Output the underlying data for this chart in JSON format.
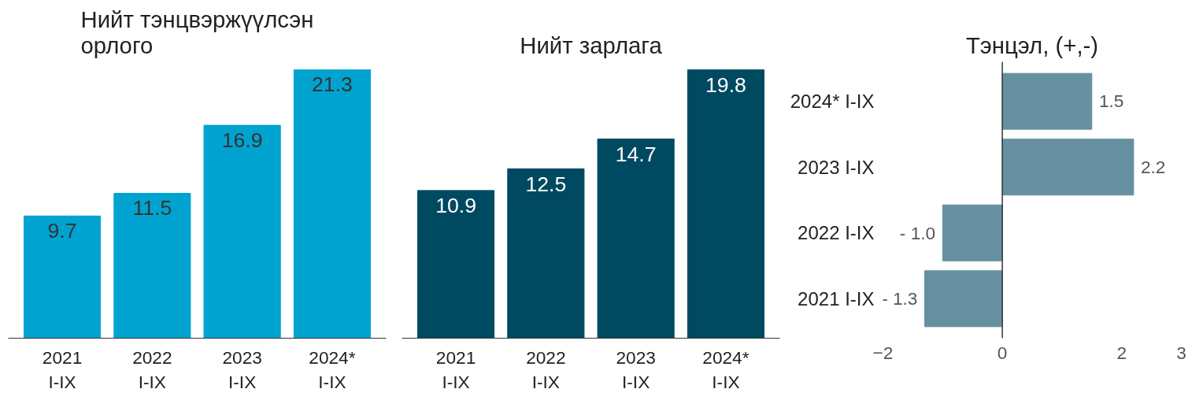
{
  "chart_data": [
    {
      "type": "bar",
      "title": "Нийт тэнцвэржүүлсэн\nорлого",
      "categories": [
        "2021\nI-IX",
        "2022\nI-IX",
        "2023\nI-IX",
        "2024*\nI-IX"
      ],
      "values": [
        9.7,
        11.5,
        16.9,
        21.3
      ],
      "color": "#00a3cf",
      "data_labels": true,
      "grid": false
    },
    {
      "type": "bar",
      "title": "Нийт зарлага",
      "categories": [
        "2021\nI-IX",
        "2022\nI-IX",
        "2023\nI-IX",
        "2024*\nI-IX"
      ],
      "values": [
        10.9,
        12.5,
        14.7,
        19.8
      ],
      "color": "#004a61",
      "data_labels": true,
      "grid": false
    },
    {
      "type": "bar",
      "orientation": "horizontal",
      "title": "Тэнцэл, (+,-)",
      "categories": [
        "2024* I-IX",
        "2023 I-IX",
        "2022 I-IX",
        "2021 I-IX"
      ],
      "values": [
        1.5,
        2.2,
        -1.0,
        -1.3
      ],
      "value_labels": [
        "1.5",
        "2.2",
        "- 1.0",
        "- 1.3"
      ],
      "color": "#6690a0",
      "xlim": [
        -2,
        3
      ],
      "xticks": [
        -2,
        0,
        2,
        3
      ],
      "ref_lines": [
        {
          "axis": "x",
          "value": 0,
          "color": "#333333"
        }
      ],
      "grid": false
    }
  ]
}
